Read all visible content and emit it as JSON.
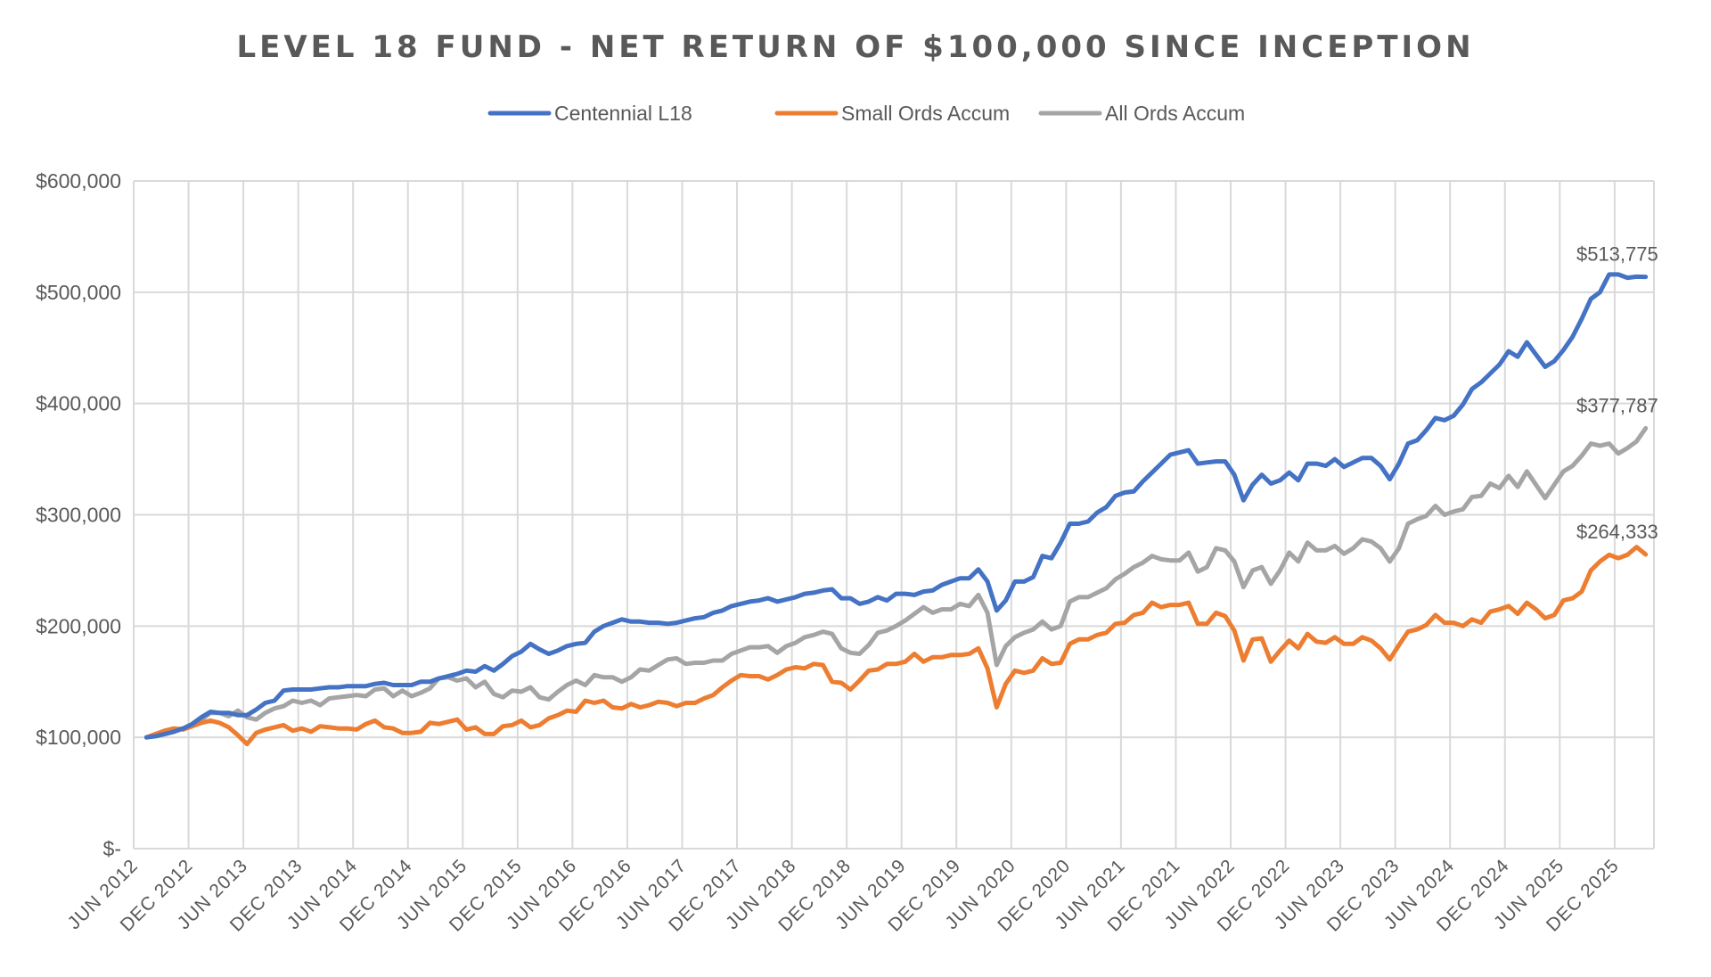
{
  "chart_data": {
    "type": "line",
    "title": "LEVEL 18 FUND - NET RETURN OF $100,000 SINCE INCEPTION",
    "xlabel": "",
    "ylabel": "",
    "x_range": [
      "2012-06",
      "2026-02"
    ],
    "x_frequency": "monthly",
    "x_tick_labels": [
      "JUN 2012",
      "DEC 2012",
      "JUN 2013",
      "DEC 2013",
      "JUN 2014",
      "DEC 2014",
      "JUN 2015",
      "DEC 2015",
      "JUN 2016",
      "DEC 2016",
      "JUN 2017",
      "DEC 2017",
      "JUN 2018",
      "DEC 2018",
      "JUN 2019",
      "DEC 2019",
      "JUN 2020",
      "DEC 2020",
      "JUN 2021",
      "DEC 2021",
      "JUN 2022",
      "DEC 2022",
      "JUN 2023",
      "DEC 2023",
      "JUN 2024",
      "DEC 2024",
      "JUN 2025",
      "DEC 2025"
    ],
    "y_tick_labels": [
      "$-",
      "$100,000",
      "$200,000",
      "$300,000",
      "$400,000",
      "$500,000",
      "$600,000"
    ],
    "y_ticks": [
      0,
      100000,
      200000,
      300000,
      400000,
      500000,
      600000
    ],
    "ylim": [
      0,
      600000
    ],
    "grid": true,
    "legend_position": "top",
    "series": [
      {
        "name": "Centennial L18",
        "color": "#4472C4",
        "end_label": "$513,775",
        "values": [
          100000,
          101000,
          103000,
          105000,
          108000,
          112000,
          118000,
          123000,
          122000,
          122000,
          120000,
          120000,
          125000,
          131000,
          133000,
          142000,
          143000,
          143000,
          143000,
          144000,
          145000,
          145000,
          146000,
          146000,
          146000,
          148000,
          149000,
          147000,
          147000,
          147000,
          150000,
          150000,
          153000,
          155000,
          157000,
          160000,
          159000,
          164000,
          160000,
          166000,
          173000,
          177000,
          184000,
          179000,
          175000,
          178000,
          182000,
          184000,
          185000,
          195000,
          200000,
          203000,
          206000,
          204000,
          204000,
          203000,
          203000,
          202000,
          203000,
          205000,
          207000,
          208000,
          212000,
          214000,
          218000,
          220000,
          222000,
          223000,
          225000,
          222000,
          224000,
          226000,
          229000,
          230000,
          232000,
          233000,
          225000,
          225000,
          220000,
          222000,
          226000,
          223000,
          229000,
          229000,
          228000,
          231000,
          232000,
          237000,
          240000,
          243000,
          243000,
          251000,
          240000,
          214000,
          223000,
          240000,
          240000,
          244000,
          263000,
          261000,
          275000,
          292000,
          292000,
          294000,
          302000,
          307000,
          317000,
          320000,
          321000,
          330000,
          338000,
          346000,
          354000,
          356000,
          358000,
          346000,
          347000,
          348000,
          348000,
          336000,
          313000,
          327000,
          336000,
          328000,
          331000,
          338000,
          331000,
          346000,
          346000,
          344000,
          350000,
          343000,
          347000,
          351000,
          351000,
          344000,
          332000,
          346000,
          364000,
          367000,
          376000,
          387000,
          385000,
          389000,
          399000,
          413000,
          419000,
          427000,
          435000,
          447000,
          442000,
          455000,
          444000,
          433000,
          438000,
          448000,
          460000,
          476000,
          494000,
          500000,
          516000,
          516000,
          513000,
          514000,
          513775
        ]
      },
      {
        "name": "Small Ords Accum",
        "color": "#ED7D31",
        "end_label": "$264,333",
        "values": [
          100000,
          103000,
          106000,
          108000,
          107000,
          110000,
          113000,
          115000,
          113000,
          109000,
          102000,
          94000,
          104000,
          107000,
          109000,
          111000,
          106000,
          108000,
          105000,
          110000,
          109000,
          108000,
          108000,
          107000,
          112000,
          115000,
          109000,
          108000,
          104000,
          104000,
          105000,
          113000,
          112000,
          114000,
          116000,
          107000,
          109000,
          103000,
          103000,
          110000,
          111000,
          115000,
          109000,
          111000,
          117000,
          120000,
          124000,
          123000,
          133000,
          131000,
          133000,
          127000,
          126000,
          130000,
          127000,
          129000,
          132000,
          131000,
          128000,
          131000,
          131000,
          135000,
          138000,
          145000,
          151000,
          156000,
          155000,
          155000,
          152000,
          156000,
          161000,
          163000,
          162000,
          166000,
          165000,
          150000,
          149000,
          143000,
          151000,
          160000,
          161000,
          166000,
          166000,
          168000,
          175000,
          168000,
          172000,
          172000,
          174000,
          174000,
          175000,
          180000,
          162000,
          127000,
          148000,
          160000,
          158000,
          160000,
          171000,
          166000,
          167000,
          184000,
          188000,
          188000,
          192000,
          194000,
          202000,
          203000,
          210000,
          212000,
          221000,
          217000,
          219000,
          219000,
          221000,
          202000,
          202000,
          212000,
          209000,
          196000,
          169000,
          188000,
          189000,
          168000,
          178000,
          187000,
          180000,
          193000,
          186000,
          185000,
          190000,
          184000,
          184000,
          190000,
          187000,
          180000,
          170000,
          183000,
          195000,
          197000,
          201000,
          210000,
          203000,
          203000,
          200000,
          206000,
          203000,
          213000,
          215000,
          218000,
          211000,
          221000,
          215000,
          207000,
          210000,
          223000,
          225000,
          231000,
          250000,
          258000,
          264000,
          261000,
          264000,
          271000,
          264333
        ]
      },
      {
        "name": "All Ords Accum",
        "color": "#A5A5A5",
        "end_label": "$377,787",
        "values": [
          100000,
          102000,
          104000,
          107000,
          108000,
          110000,
          116000,
          122000,
          122000,
          119000,
          124000,
          118000,
          116000,
          122000,
          126000,
          128000,
          133000,
          131000,
          133000,
          129000,
          135000,
          136000,
          137000,
          138000,
          137000,
          143000,
          144000,
          137000,
          142000,
          137000,
          140000,
          144000,
          153000,
          154000,
          151000,
          153000,
          145000,
          150000,
          139000,
          136000,
          142000,
          141000,
          145000,
          136000,
          134000,
          141000,
          147000,
          151000,
          147000,
          156000,
          154000,
          154000,
          150000,
          154000,
          161000,
          160000,
          165000,
          170000,
          171000,
          166000,
          167000,
          167000,
          169000,
          169000,
          175000,
          178000,
          181000,
          181000,
          182000,
          176000,
          182000,
          185000,
          190000,
          192000,
          195000,
          193000,
          180000,
          176000,
          175000,
          183000,
          194000,
          196000,
          200000,
          205000,
          211000,
          217000,
          212000,
          215000,
          215000,
          220000,
          218000,
          228000,
          212000,
          165000,
          182000,
          190000,
          194000,
          197000,
          204000,
          197000,
          200000,
          222000,
          226000,
          226000,
          230000,
          234000,
          242000,
          247000,
          253000,
          257000,
          263000,
          260000,
          259000,
          259000,
          266000,
          249000,
          253000,
          270000,
          268000,
          258000,
          235000,
          250000,
          253000,
          238000,
          250000,
          266000,
          258000,
          275000,
          268000,
          268000,
          272000,
          265000,
          270000,
          278000,
          276000,
          270000,
          258000,
          270000,
          292000,
          296000,
          299000,
          308000,
          300000,
          303000,
          305000,
          316000,
          317000,
          328000,
          324000,
          335000,
          325000,
          339000,
          327000,
          315000,
          327000,
          339000,
          344000,
          353000,
          364000,
          362000,
          364000,
          355000,
          360000,
          366000,
          377787
        ]
      }
    ]
  }
}
